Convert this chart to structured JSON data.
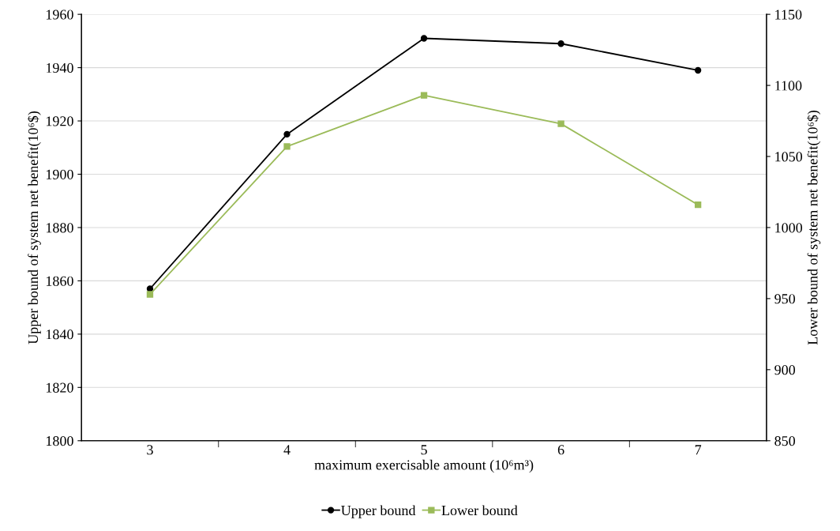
{
  "chart_data": {
    "type": "line",
    "xlabel": "maximum exercisable amount (10⁶m³)",
    "ylabel": "Upper bound of system net benefit(10⁶$)",
    "y2label": "Lower bound of system net benefit(10⁶$)",
    "categories": [
      "3",
      "4",
      "5",
      "6",
      "7"
    ],
    "series": [
      {
        "name": "Upper bound",
        "color": "#000000",
        "marker": "circle",
        "values": [
          1857,
          1915,
          1951,
          1949,
          1939
        ]
      },
      {
        "name": "Lower bound",
        "color": "#9bbb59",
        "marker": "square",
        "axis": "y2",
        "values": [
          953,
          1057,
          1093,
          1073,
          1016
        ]
      }
    ],
    "ylim": [
      1800,
      1960
    ],
    "yticks": [
      1800,
      1820,
      1840,
      1860,
      1880,
      1900,
      1920,
      1940,
      1960
    ],
    "y2lim": [
      850,
      1150
    ],
    "y2ticks": [
      850,
      900,
      950,
      1000,
      1050,
      1100,
      1150
    ],
    "grid": "y",
    "legend": "bottom",
    "line_style": "solid"
  }
}
